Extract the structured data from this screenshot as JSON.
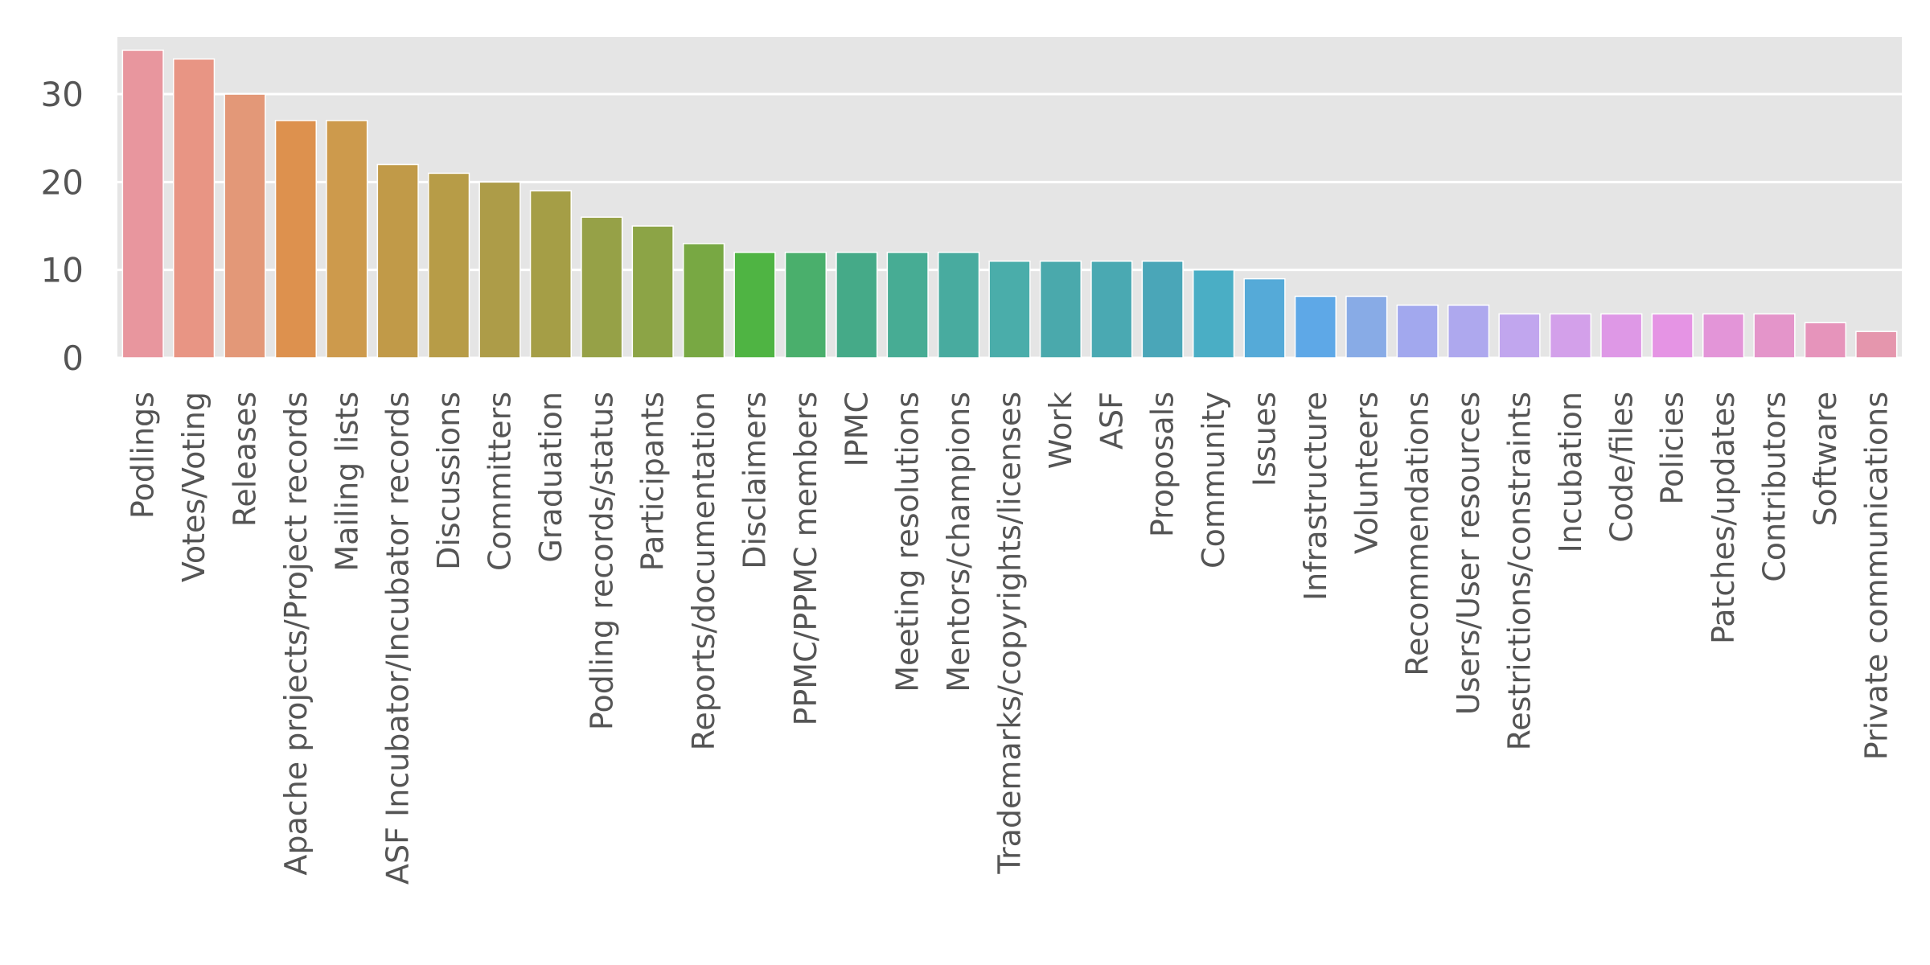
{
  "chart_data": {
    "type": "bar",
    "title": "",
    "xlabel": "",
    "ylabel": "",
    "ylim": [
      0,
      36.5
    ],
    "yticks": [
      0,
      10,
      20,
      30
    ],
    "grid": true,
    "background": "#e5e5e5",
    "categories": [
      "Podlings",
      "Votes/Voting",
      "Releases",
      "Apache projects/Project records",
      "Mailing lists",
      "ASF Incubator/Incubator records",
      "Discussions",
      "Committers",
      "Graduation",
      "Podling records/status",
      "Participants",
      "Reports/documentation",
      "Disclaimers",
      "PPMC/PPMC members",
      "IPMC",
      "Meeting resolutions",
      "Mentors/champions",
      "Trademarks/copyrights/licenses",
      "Work",
      "ASF",
      "Proposals",
      "Community",
      "Issues",
      "Infrastructure",
      "Volunteers",
      "Recommendations",
      "Users/User resources",
      "Restrictions/constraints",
      "Incubation",
      "Code/files",
      "Policies",
      "Patches/updates",
      "Contributors",
      "Software",
      "Private communications"
    ],
    "values": [
      35,
      34,
      30,
      27,
      27,
      22,
      21,
      20,
      19,
      16,
      15,
      13,
      12,
      12,
      12,
      12,
      12,
      11,
      11,
      11,
      11,
      10,
      9,
      7,
      7,
      6,
      6,
      5,
      5,
      5,
      5,
      5,
      5,
      4,
      3
    ],
    "colors": [
      "#e8969e",
      "#e89584",
      "#e39878",
      "#dd914e",
      "#cd9a4c",
      "#c19a48",
      "#b79c47",
      "#ad9c48",
      "#a59e46",
      "#96a147",
      "#8ca446",
      "#78a843",
      "#4fb443",
      "#4aaf6c",
      "#45aa88",
      "#47ac94",
      "#48ab9f",
      "#4aadaa",
      "#4aa9ac",
      "#4aa9b2",
      "#4aa6b8",
      "#4aaec5",
      "#55aad8",
      "#5ea8e7",
      "#88abe6",
      "#a2a8ee",
      "#aea8ee",
      "#c1a6ee",
      "#d3a0ea",
      "#de98e6",
      "#e594e4",
      "#e395d8",
      "#e495ca",
      "#e694bb",
      "#e596ad"
    ]
  }
}
